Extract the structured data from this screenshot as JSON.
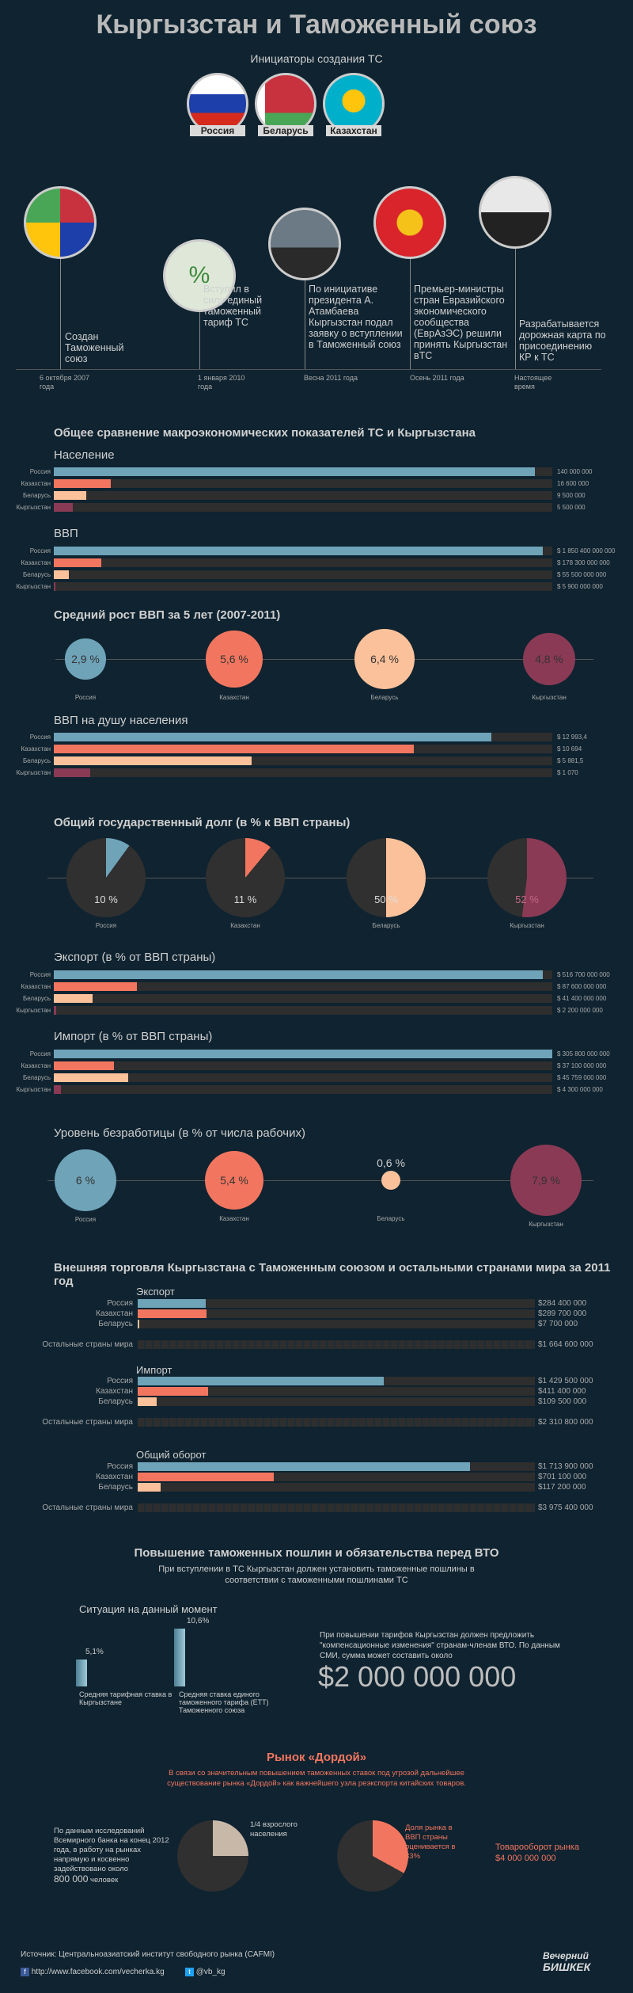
{
  "title": "Кыргызстан и Таможенный союз",
  "initiators_title": "Инициаторы создания ТС",
  "flags": [
    {
      "label": "Россия",
      "colors": [
        "#ffffff",
        "#1c3faa",
        "#d52b1e"
      ]
    },
    {
      "label": "Беларусь",
      "colors": [
        "#c8313e",
        "#4aa657"
      ]
    },
    {
      "label": "Казахстан",
      "colors": [
        "#00afca",
        "#fec50c"
      ]
    }
  ],
  "timeline": [
    {
      "text": "Создан Таможенный союз",
      "date": "6 октября 2007 года"
    },
    {
      "text": "Вступил в силу единый таможенный тариф ТС",
      "date": "1 января 2010 года"
    },
    {
      "text": "По инициативе президента А. Атамбаева Кыргызстан подал заявку о вступлении в Таможенный союз",
      "date": "Весна 2011 года"
    },
    {
      "text": "Премьер-министры стран Евразийского экономического сообщества (ЕврАзЭС) решили принять Кыргызстан вТС",
      "date": "Осень 2011 года"
    },
    {
      "text": "Разрабатывается дорожная карта по присоединению КР к ТС",
      "date": "Настоящее время"
    }
  ],
  "compare_title": "Общее сравнение макроэкономических показателей ТС и Кыргызстана",
  "countries": [
    "Россия",
    "Казахстан",
    "Беларусь",
    "Кыргызстан"
  ],
  "colors": {
    "russia": "#6fa3b8",
    "kazakhstan": "#f2765f",
    "belarus": "#fbc19a",
    "kyrgyzstan": "#8a3a55",
    "track": "#2e2e2e",
    "bg": "#0f2330"
  },
  "chart_data": [
    {
      "type": "bar",
      "title": "Население",
      "categories": [
        "Россия",
        "Казахстан",
        "Беларусь",
        "Кыргызстан"
      ],
      "values": [
        140000000,
        16600000,
        9500000,
        5500000
      ],
      "labels": [
        "140 000 000",
        "16 600 000",
        "9 500 000",
        "5 500 000"
      ],
      "max": 145000000
    },
    {
      "type": "bar",
      "title": "ВВП",
      "categories": [
        "Россия",
        "Казахстан",
        "Беларусь",
        "Кыргызстан"
      ],
      "values": [
        1850400000000,
        178300000000,
        55500000000,
        5900000000
      ],
      "labels": [
        "$ 1 850 400 000 000",
        "$ 178 300 000 000",
        "$ 55 500 000 000",
        "$ 5 900 000 000"
      ],
      "max": 1885000000000
    },
    {
      "type": "bubble",
      "title": "Средний рост ВВП за 5 лет (2007-2011)",
      "categories": [
        "Россия",
        "Казахстан",
        "Беларусь",
        "Кыргызстан"
      ],
      "values": [
        2.9,
        5.6,
        6.4,
        4.8
      ],
      "labels": [
        "2,9 %",
        "5,6 %",
        "6,4 %",
        "4,8 %"
      ]
    },
    {
      "type": "bar",
      "title": "ВВП на душу населения",
      "categories": [
        "Россия",
        "Казахстан",
        "Беларусь",
        "Кыргызстан"
      ],
      "values": [
        12993.4,
        10694,
        5881.5,
        1070
      ],
      "labels": [
        "$ 12 993,4",
        "$ 10 694",
        "$ 5 881,5",
        "$ 1 070"
      ],
      "max": 14800
    },
    {
      "type": "pie",
      "title": "Общий государственный долг (в % к ВВП страны)",
      "categories": [
        "Россия",
        "Казахстан",
        "Беларусь",
        "Кыргызстан"
      ],
      "values": [
        10,
        11,
        50,
        52
      ],
      "labels": [
        "10 %",
        "11 %",
        "50 %",
        "52 %"
      ]
    },
    {
      "type": "bar",
      "title": "Экспорт (в % от ВВП страны)",
      "categories": [
        "Россия",
        "Казахстан",
        "Беларусь",
        "Кыргызстан"
      ],
      "values": [
        516700000000,
        87600000000,
        41400000000,
        2200000000
      ],
      "labels": [
        "$ 516 700 000 000",
        "$ 87 600 000 000",
        "$ 41 400 000 000",
        "$ 2 200 000 000"
      ],
      "max": 527000000000
    },
    {
      "type": "bar",
      "title": "Импорт (в % от ВВП страны)",
      "categories": [
        "Россия",
        "Казахстан",
        "Беларусь",
        "Кыргызстан"
      ],
      "values": [
        305800000000,
        37100000000,
        45759000000,
        4300000000
      ],
      "labels": [
        "$ 305 800 000 000",
        "$ 37 100 000 000",
        "$ 45 759 000 000",
        "$ 4 300 000 000"
      ],
      "max": 306000000000
    },
    {
      "type": "bubble",
      "title": "Уровень безработицы (в % от числа рабочих)",
      "categories": [
        "Россия",
        "Казахстан",
        "Беларусь",
        "Кыргызстан"
      ],
      "values": [
        6,
        5.4,
        0.6,
        7.9
      ],
      "labels": [
        "6 %",
        "5,4 %",
        "0,6 %",
        "7,9 %"
      ]
    },
    {
      "type": "bar",
      "title": "Экспорт",
      "categories": [
        "Россия",
        "Казахстан",
        "Беларусь",
        "Остальные страны мира"
      ],
      "values": [
        284400000,
        289700000,
        7700000,
        1664600000
      ],
      "labels": [
        "$284 400 000",
        "$289 700 000",
        "$7 700 000",
        "$1 664 600 000"
      ],
      "max": 1664600000
    },
    {
      "type": "bar",
      "title": "Импорт",
      "categories": [
        "Россия",
        "Казахстан",
        "Беларусь",
        "Остальные страны мира"
      ],
      "values": [
        1429500000,
        411400000,
        109500000,
        2310800000
      ],
      "labels": [
        "$1 429 500 000",
        "$411 400 000",
        "$109 500 000",
        "$2 310 800 000"
      ],
      "max": 2310800000
    },
    {
      "type": "bar",
      "title": "Общий оборот",
      "categories": [
        "Россия",
        "Казахстан",
        "Беларусь",
        "Остальные страны мира"
      ],
      "values": [
        1713900000,
        701100000,
        117200000,
        3975400000
      ],
      "labels": [
        "$1 713 900 000",
        "$701 100 000",
        "$117 200 000",
        "$3 975 400 000"
      ],
      "max": 2047000000
    },
    {
      "type": "bar",
      "title": "",
      "categories": [
        "Средняя тарифная ставка в Кыргызстане",
        "Средняя ставка единого таможенного тарифа (ЕТТ) Таможенного союза"
      ],
      "values": [
        5.1,
        10.6
      ],
      "labels": [
        "5,1%",
        "10,6%"
      ]
    },
    {
      "type": "pie",
      "title": "",
      "categories": [
        "1/4 взрослого населения",
        "Доля рынка в ВВП страны оценивается в 33%"
      ],
      "values": [
        25,
        33
      ]
    }
  ],
  "trade_title": "Внешняя торговля Кыргызстана с Таможенным союзом и остальными странами мира за 2011 год",
  "duties_title": "Повышение таможенных пошлин и обязательства перед ВТО",
  "duties_sub": "При вступлении в ТС Кыргызстан должен установить таможенные пошлины в соответствии с таможенными пошлинами ТС",
  "situation_title": "Ситуация на данный момент",
  "tariff_low_value": "5,1%",
  "tariff_low_label": "Средняя тарифная ставка в Кыргызстане",
  "tariff_high_value": "10,6%",
  "tariff_high_label": "Средняя ставка единого таможенного тарифа (ЕТТ) Таможенного союза",
  "compensation_text": "При повышении тарифов Кыргызстан должен предложить \"компенсационные изменения\" странам-членам ВТО. По данным СМИ, сумма может составить около",
  "compensation_sum": "$2 000 000 000",
  "dordoi_title": "Рынок «Дордой»",
  "dordoi_sub": "В связи со значительным повышением таможенных ставок под угрозой дальнейшее существование рынка «Дордой» как важнейшего узла реэкспорта китайских товаров.",
  "wb_text": "По данным исследований Всемирного банка на конец 2012 года, в работу на рынках напрямую и косвенно задействовано около",
  "wb_number": "800 000",
  "wb_unit": "человек",
  "pie1_label": "1/4 взрослого населения",
  "pie2_label": "Доля рынка в ВВП страны оценивается в 33%",
  "turnover_label": "Товарооборот рынка",
  "turnover_value": "$4 000 000 000",
  "source": "Источник: Центральноазиатский институт свободного рынка (CAFMI)",
  "facebook": "http://www.facebook.com/vecherka.kg",
  "twitter": "@vb_kg",
  "logo_line1": "Вечерний",
  "logo_line2": "БИШКЕК"
}
